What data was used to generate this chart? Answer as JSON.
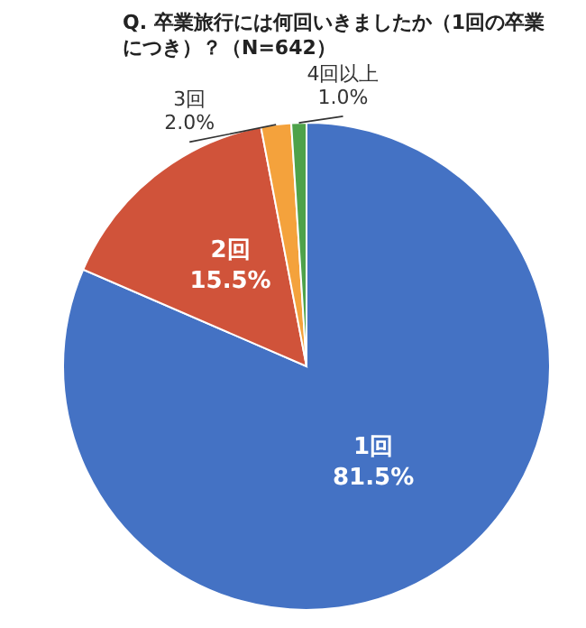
{
  "chart_data": {
    "type": "pie",
    "title": "Q. 卒業旅行には何回いきましたか（1回の卒業につき）？（N=642）",
    "categories": [
      "1回",
      "2回",
      "3回",
      "4回以上"
    ],
    "values": [
      81.5,
      15.5,
      2.0,
      1.0
    ],
    "value_labels": [
      "81.5%",
      "15.5%",
      "2.0%",
      "1.0%"
    ],
    "colors": [
      "#4472c4",
      "#d0533a",
      "#f4a23c",
      "#4ea24a"
    ],
    "legend": false
  }
}
